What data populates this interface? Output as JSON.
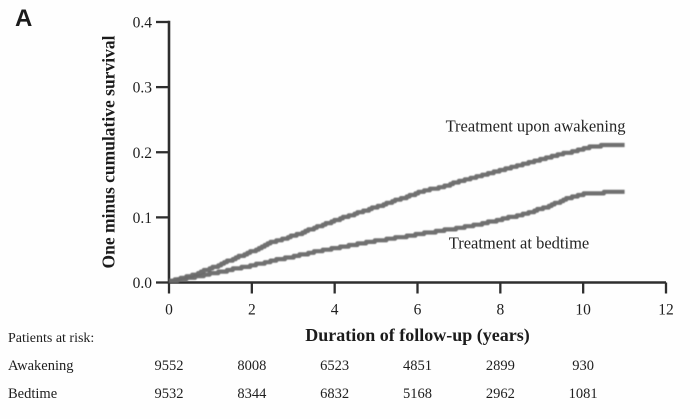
{
  "panel_label": "A",
  "colors": {
    "curve": "#696969",
    "axis": "#2e2e2e",
    "text": "#1e1e1e",
    "background": "#fefefe"
  },
  "chart_data": {
    "type": "line",
    "subtype": "kaplan-meier-cumulative-incidence",
    "title": "",
    "xlabel": "Duration of follow-up (years)",
    "ylabel": "One minus cumulative survival",
    "xlim": [
      0,
      12
    ],
    "ylim": [
      0,
      0.4
    ],
    "xticks": [
      0,
      2,
      4,
      6,
      8,
      10,
      12
    ],
    "yticks": [
      0.0,
      0.1,
      0.2,
      0.3,
      0.4
    ],
    "grid": false,
    "legend_position": "inline-annotations",
    "series": [
      {
        "name": "Treatment upon awakening",
        "color": "#696969",
        "x": [
          0,
          0.5,
          1,
          1.5,
          2,
          2.5,
          3,
          3.5,
          4,
          4.5,
          5,
          5.5,
          6,
          6.5,
          7,
          7.5,
          8,
          8.5,
          9,
          9.5,
          10,
          10.2,
          10.4,
          11.0
        ],
        "y": [
          0.002,
          0.01,
          0.022,
          0.035,
          0.048,
          0.063,
          0.072,
          0.084,
          0.096,
          0.106,
          0.116,
          0.127,
          0.138,
          0.146,
          0.155,
          0.164,
          0.172,
          0.181,
          0.19,
          0.198,
          0.205,
          0.209,
          0.21,
          0.21
        ],
        "label_pos": {
          "x": 8.85,
          "y": 0.232
        }
      },
      {
        "name": "Treatment at bedtime",
        "color": "#696969",
        "x": [
          0,
          0.5,
          1,
          1.5,
          2,
          2.5,
          3,
          3.5,
          4,
          4.5,
          5,
          5.5,
          6,
          6.5,
          7,
          7.5,
          8,
          8.4,
          8.8,
          9.1,
          9.4,
          9.7,
          9.9,
          10.2,
          10.5,
          11.0
        ],
        "y": [
          0.002,
          0.007,
          0.014,
          0.02,
          0.026,
          0.034,
          0.04,
          0.047,
          0.053,
          0.059,
          0.064,
          0.069,
          0.074,
          0.079,
          0.084,
          0.09,
          0.097,
          0.103,
          0.11,
          0.116,
          0.124,
          0.131,
          0.135,
          0.137,
          0.138,
          0.138
        ],
        "label_pos": {
          "x": 8.45,
          "y": 0.052
        }
      }
    ]
  },
  "risk_table": {
    "title": "Patients at risk:",
    "value_years": [
      0,
      2,
      4,
      6,
      8,
      10
    ],
    "rows": [
      {
        "label": "Awakening",
        "values": [
          "9552",
          "8008",
          "6523",
          "4851",
          "2899",
          "930"
        ]
      },
      {
        "label": "Bedtime",
        "values": [
          "9532",
          "8344",
          "6832",
          "5168",
          "2962",
          "1081"
        ]
      }
    ]
  }
}
